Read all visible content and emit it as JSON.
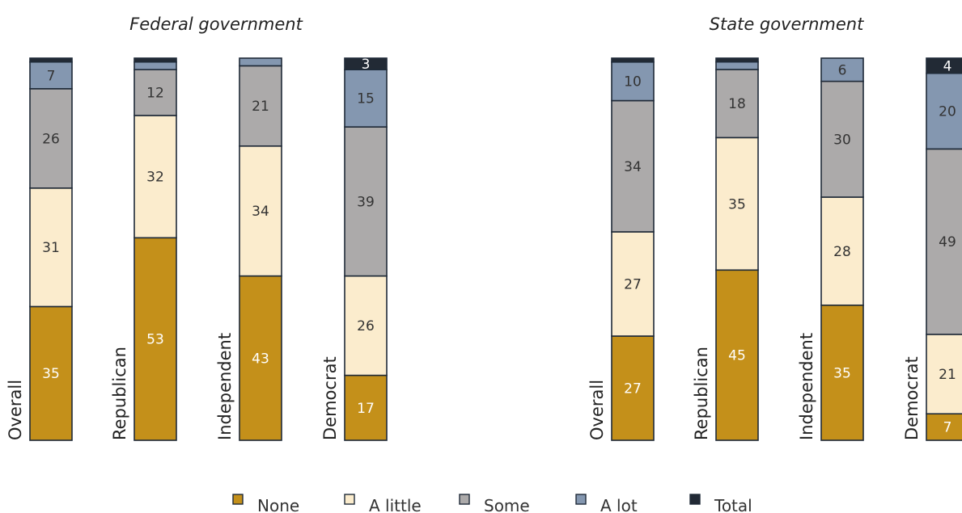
{
  "chart_data": [
    {
      "type": "bar",
      "stacked": true,
      "title": "Federal government",
      "categories": [
        "Overall",
        "Republican",
        "Independent",
        "Democrat"
      ],
      "series": [
        {
          "name": "None",
          "values": [
            35,
            53,
            43,
            17
          ]
        },
        {
          "name": "A little",
          "values": [
            31,
            32,
            34,
            26
          ]
        },
        {
          "name": "Some",
          "values": [
            26,
            12,
            21,
            39
          ]
        },
        {
          "name": "A lot",
          "values": [
            7,
            2,
            2,
            15
          ]
        },
        {
          "name": "Total",
          "values": [
            1,
            1,
            0,
            3
          ]
        }
      ],
      "ylim": [
        0,
        100
      ]
    },
    {
      "type": "bar",
      "stacked": true,
      "title": "State government",
      "categories": [
        "Overall",
        "Republican",
        "Independent",
        "Democrat"
      ],
      "series": [
        {
          "name": "None",
          "values": [
            27,
            45,
            35,
            7
          ]
        },
        {
          "name": "A little",
          "values": [
            27,
            35,
            28,
            21
          ]
        },
        {
          "name": "Some",
          "values": [
            34,
            18,
            30,
            49
          ]
        },
        {
          "name": "A lot",
          "values": [
            10,
            2,
            6,
            20
          ]
        },
        {
          "name": "Total",
          "values": [
            1,
            1,
            0,
            4
          ]
        }
      ],
      "ylim": [
        0,
        100
      ]
    }
  ],
  "colors": {
    "None": "#c4901a",
    "A little": "#fbeccd",
    "Some": "#acaaaa",
    "A lot": "#8497b0",
    "Total": "#222a35"
  },
  "legend": {
    "position": "bottom",
    "items": [
      "None",
      "A little",
      "Some",
      "A lot",
      "Total"
    ]
  }
}
